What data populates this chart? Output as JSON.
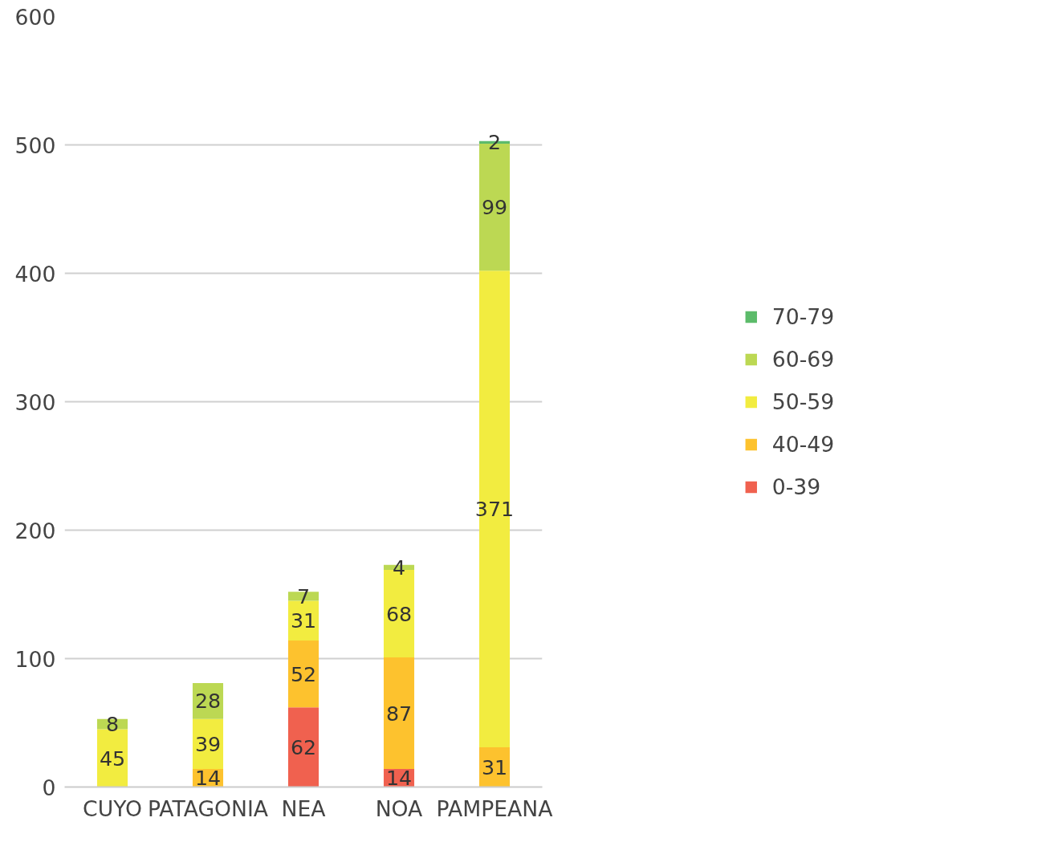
{
  "chart_data": {
    "type": "bar",
    "stacked": true,
    "categories": [
      "CUYO",
      "PATAGONIA",
      "NEA",
      "NOA",
      "PAMPEANA"
    ],
    "series": [
      {
        "name": "0-39",
        "color": "#f0614f",
        "values": [
          null,
          null,
          62,
          14,
          null
        ]
      },
      {
        "name": "40-49",
        "color": "#fdc22e",
        "values": [
          null,
          14,
          52,
          87,
          31
        ]
      },
      {
        "name": "50-59",
        "color": "#f2ec40",
        "values": [
          45,
          39,
          31,
          68,
          371
        ]
      },
      {
        "name": "60-69",
        "color": "#bcd853",
        "values": [
          8,
          28,
          7,
          4,
          99
        ]
      },
      {
        "name": "70-79",
        "color": "#5cbb6a",
        "values": [
          null,
          null,
          null,
          null,
          2
        ]
      }
    ],
    "ylim": [
      0,
      600
    ],
    "yticks": [
      0,
      100,
      200,
      300,
      400,
      500,
      600
    ],
    "grid": "y",
    "legend": "right",
    "data_labels": true
  }
}
